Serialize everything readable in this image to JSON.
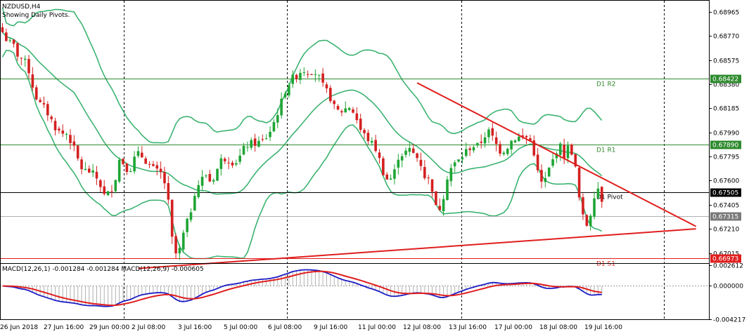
{
  "header": {
    "symbol": "NZDUSD,H4",
    "subtitle": "Showing Daily Pivots."
  },
  "colors": {
    "background": "#ffffff",
    "candle_up": "#1fa535",
    "candle_down": "#d42020",
    "bollinger": "#3cb371",
    "trendline": "#e01e1e",
    "pivot_line": "#000000",
    "r_line": "#2e8b2e",
    "s_line": "#e01e1e",
    "macd_line": "#1c1cc4",
    "signal_line": "#e01e1e",
    "hist": "#b0b0b0",
    "price_tag": "#7a7a7a"
  },
  "chart_data": [
    {
      "type": "candlestick",
      "title": "NZDUSD,H4",
      "subtitle": "Showing Daily Pivots.",
      "ylim": [
        0.6695,
        0.6906
      ],
      "y_ticks": [
        "0.68965",
        "0.68770",
        "0.68575",
        "0.68380",
        "0.68185",
        "0.67990",
        "0.67795",
        "0.67600",
        "0.67405",
        "0.67210",
        "0.67015"
      ],
      "x_ticks": [
        "26 Jun 2018",
        "27 Jun 16:00",
        "29 Jun 00:00",
        "2 Jul 08:00",
        "3 Jul 16:00",
        "5 Jul 00:00",
        "6 Jul 08:00",
        "9 Jul 16:00",
        "11 Jul 00:00",
        "12 Jul 08:00",
        "13 Jul 16:00",
        "17 Jul 00:00",
        "18 Jul 08:00",
        "19 Jul 16:00"
      ],
      "grid": "vertical-dashed",
      "close": [
        0.688,
        0.6872,
        0.687,
        0.686,
        0.6858,
        0.6848,
        0.683,
        0.6822,
        0.6818,
        0.681,
        0.6802,
        0.6798,
        0.6798,
        0.679,
        0.6778,
        0.6768,
        0.6768,
        0.6765,
        0.676,
        0.6748,
        0.675,
        0.676,
        0.678,
        0.677,
        0.677,
        0.6782,
        0.678,
        0.6775,
        0.677,
        0.6767,
        0.6765,
        0.6742,
        0.67,
        0.6702,
        0.672,
        0.6732,
        0.6752,
        0.676,
        0.6765,
        0.6758,
        0.6768,
        0.6778,
        0.6778,
        0.6775,
        0.6776,
        0.6785,
        0.679,
        0.679,
        0.6791,
        0.6793,
        0.68,
        0.681,
        0.6822,
        0.6835,
        0.6842,
        0.6845,
        0.685,
        0.6848,
        0.6849,
        0.6845,
        0.6835,
        0.683,
        0.6819,
        0.6815,
        0.6818,
        0.682,
        0.6812,
        0.68,
        0.6795,
        0.679,
        0.6784,
        0.6768,
        0.676,
        0.6763,
        0.678,
        0.6782,
        0.6785,
        0.6781,
        0.6776,
        0.6762,
        0.676,
        0.6738,
        0.6738,
        0.6762,
        0.6772,
        0.6775,
        0.678,
        0.6786,
        0.6788,
        0.6788,
        0.6796,
        0.68,
        0.6791,
        0.6784,
        0.6785,
        0.6792,
        0.6795,
        0.6795,
        0.6795,
        0.679,
        0.6767,
        0.6755,
        0.6768,
        0.6778,
        0.679,
        0.678,
        0.679,
        0.6772,
        0.6738,
        0.6722,
        0.6735,
        0.6758,
        0.6745
      ],
      "bollinger": {
        "upper": "fitted",
        "middle": "fitted",
        "lower": "fitted"
      },
      "levels": [
        {
          "name": "D1 R2",
          "value": 0.68422,
          "label": "0.68422",
          "color": "#2e8b2e"
        },
        {
          "name": "D1 R1",
          "value": 0.6789,
          "label": "0.67890",
          "color": "#2e8b2e"
        },
        {
          "name": "D1 Pivot",
          "value": 0.67505,
          "label": "0.67505",
          "color": "#000000"
        },
        {
          "name": "D1 S1",
          "value": 0.66973,
          "label": "0.66973",
          "color": "#e01e1e"
        }
      ],
      "current_price": {
        "value": 0.67315,
        "label": "0.67315"
      },
      "trendlines": [
        {
          "from": {
            "bar": 36,
            "price": 0.6689
          },
          "to": {
            "bar": 156,
            "price": 0.6721
          }
        },
        {
          "from": {
            "bar": 110,
            "price": 0.6839
          },
          "to": {
            "bar": 156,
            "price": 0.6723
          }
        }
      ]
    },
    {
      "type": "line",
      "title": "MACD(12,26,1) -0.001284 -0.001284 MACD(12,26,9) -0.000605",
      "ylim": [
        -0.004217,
        0.002612
      ],
      "y_ticks": [
        "0.002612",
        "0.000000",
        "-0.004217"
      ],
      "series": [
        {
          "name": "MACD(12,26,1)",
          "values": "computed from close"
        },
        {
          "name": "MACD(12,26,9)",
          "values": "computed from close"
        }
      ],
      "zero_line": "dashed"
    }
  ]
}
